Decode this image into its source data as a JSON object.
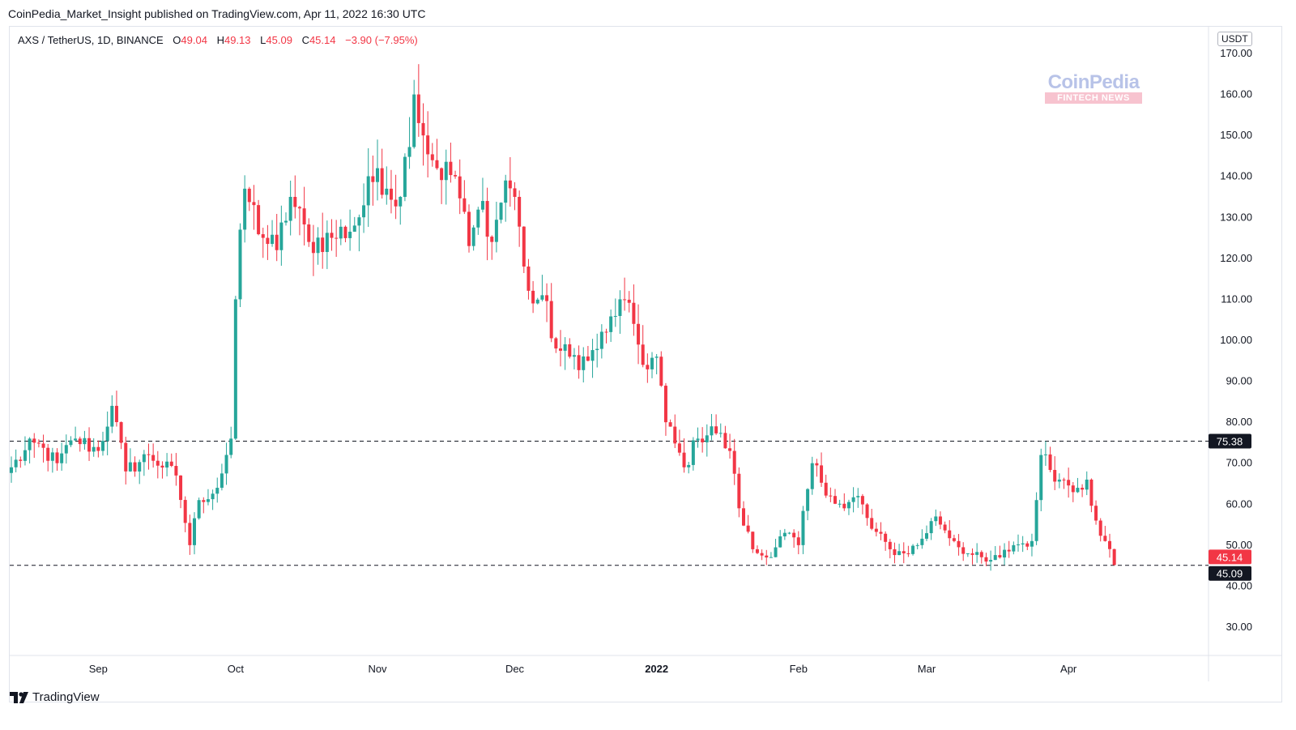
{
  "header": {
    "published": "CoinPedia_Market_Insight published on TradingView.com, Apr 11, 2022 16:30 UTC"
  },
  "legend": {
    "symbol": "AXS / TetherUS, 1D, BINANCE",
    "open_label": "O",
    "open": "49.04",
    "high_label": "H",
    "high": "49.13",
    "low_label": "L",
    "low": "45.09",
    "close_label": "C",
    "close": "45.14",
    "change": "−3.90 (−7.95%)"
  },
  "watermark": {
    "main": "CoinPedia",
    "sub": "FINTECH NEWS"
  },
  "footer": {
    "brand": "TradingView",
    "logo_icon": "tradingview-logo-icon"
  },
  "colors": {
    "up": "#26a69a",
    "down": "#f23645",
    "grid_border": "#e0e3eb",
    "text": "#131722"
  },
  "chart_data": {
    "type": "candlestick",
    "unit": "USDT",
    "ylim": [
      22,
      175
    ],
    "yticks": [
      "170.00",
      "160.00",
      "150.00",
      "140.00",
      "130.00",
      "120.00",
      "110.00",
      "100.00",
      "90.00",
      "80.00",
      "70.00",
      "60.00",
      "50.00",
      "40.00",
      "30.00"
    ],
    "xlabels": [
      {
        "label": "Sep",
        "date": "2021-09-01",
        "bold": false
      },
      {
        "label": "Oct",
        "date": "2021-10-01",
        "bold": false
      },
      {
        "label": "Nov",
        "date": "2021-11-01",
        "bold": false
      },
      {
        "label": "Dec",
        "date": "2021-12-01",
        "bold": false
      },
      {
        "label": "2022",
        "date": "2022-01-01",
        "bold": true
      },
      {
        "label": "Feb",
        "date": "2022-02-01",
        "bold": false
      },
      {
        "label": "Mar",
        "date": "2022-03-01",
        "bold": false
      },
      {
        "label": "Apr",
        "date": "2022-04-01",
        "bold": false
      }
    ],
    "hlines": [
      {
        "value": 75.38,
        "label": "75.38",
        "style": "dashed"
      },
      {
        "value": 45.09,
        "label": "45.09",
        "style": "dashed"
      }
    ],
    "price_tags": [
      {
        "value": 45.14,
        "label": "45.14",
        "bg": "#f23645"
      },
      {
        "value": 45.09,
        "label": "45.09",
        "bg": "#131722"
      }
    ],
    "series": [
      {
        "name": "AXS / TetherUS",
        "start_date": "2021-08-13",
        "waypoints": [
          {
            "date": "2021-08-13",
            "close": 69
          },
          {
            "date": "2021-08-18",
            "close": 75
          },
          {
            "date": "2021-08-23",
            "close": 70
          },
          {
            "date": "2021-08-27",
            "close": 76
          },
          {
            "date": "2021-09-01",
            "close": 73
          },
          {
            "date": "2021-09-04",
            "close": 84
          },
          {
            "date": "2021-09-07",
            "close": 68
          },
          {
            "date": "2021-09-12",
            "close": 72
          },
          {
            "date": "2021-09-18",
            "close": 67
          },
          {
            "date": "2021-09-21",
            "close": 50
          },
          {
            "date": "2021-09-23",
            "close": 61
          },
          {
            "date": "2021-09-27",
            "close": 64
          },
          {
            "date": "2021-09-30",
            "close": 76
          },
          {
            "date": "2021-10-01",
            "close": 110
          },
          {
            "date": "2021-10-03",
            "close": 137
          },
          {
            "date": "2021-10-07",
            "close": 125
          },
          {
            "date": "2021-10-10",
            "close": 122
          },
          {
            "date": "2021-10-13",
            "close": 135
          },
          {
            "date": "2021-10-17",
            "close": 124
          },
          {
            "date": "2021-10-22",
            "close": 125
          },
          {
            "date": "2021-10-27",
            "close": 128
          },
          {
            "date": "2021-11-01",
            "close": 142
          },
          {
            "date": "2021-11-03",
            "close": 137
          },
          {
            "date": "2021-11-06",
            "close": 135
          },
          {
            "date": "2021-11-09",
            "close": 160
          },
          {
            "date": "2021-11-11",
            "close": 150
          },
          {
            "date": "2021-11-14",
            "close": 142
          },
          {
            "date": "2021-11-18",
            "close": 140
          },
          {
            "date": "2021-11-21",
            "close": 123
          },
          {
            "date": "2021-11-24",
            "close": 134
          },
          {
            "date": "2021-11-26",
            "close": 124
          },
          {
            "date": "2021-11-29",
            "close": 139
          },
          {
            "date": "2021-12-01",
            "close": 135
          },
          {
            "date": "2021-12-03",
            "close": 118
          },
          {
            "date": "2021-12-05",
            "close": 109
          },
          {
            "date": "2021-12-07",
            "close": 111
          },
          {
            "date": "2021-12-10",
            "close": 98
          },
          {
            "date": "2021-12-13",
            "close": 96
          },
          {
            "date": "2021-12-17",
            "close": 95
          },
          {
            "date": "2021-12-21",
            "close": 102
          },
          {
            "date": "2021-12-24",
            "close": 110
          },
          {
            "date": "2021-12-27",
            "close": 104
          },
          {
            "date": "2021-12-29",
            "close": 94
          },
          {
            "date": "2022-01-01",
            "close": 96
          },
          {
            "date": "2022-01-03",
            "close": 80
          },
          {
            "date": "2022-01-07",
            "close": 69
          },
          {
            "date": "2022-01-10",
            "close": 76
          },
          {
            "date": "2022-01-13",
            "close": 79
          },
          {
            "date": "2022-01-17",
            "close": 73
          },
          {
            "date": "2022-01-19",
            "close": 59
          },
          {
            "date": "2022-01-22",
            "close": 49
          },
          {
            "date": "2022-01-25",
            "close": 47
          },
          {
            "date": "2022-01-29",
            "close": 53
          },
          {
            "date": "2022-02-01",
            "close": 50
          },
          {
            "date": "2022-02-04",
            "close": 70
          },
          {
            "date": "2022-02-08",
            "close": 62
          },
          {
            "date": "2022-02-11",
            "close": 59
          },
          {
            "date": "2022-02-14",
            "close": 62
          },
          {
            "date": "2022-02-17",
            "close": 54
          },
          {
            "date": "2022-02-21",
            "close": 49
          },
          {
            "date": "2022-02-24",
            "close": 48
          },
          {
            "date": "2022-02-27",
            "close": 50
          },
          {
            "date": "2022-03-03",
            "close": 57
          },
          {
            "date": "2022-03-07",
            "close": 51
          },
          {
            "date": "2022-03-10",
            "close": 48
          },
          {
            "date": "2022-03-14",
            "close": 46
          },
          {
            "date": "2022-03-17",
            "close": 47
          },
          {
            "date": "2022-03-20",
            "close": 50
          },
          {
            "date": "2022-03-24",
            "close": 51
          },
          {
            "date": "2022-03-25",
            "close": 61
          },
          {
            "date": "2022-03-26",
            "close": 72
          },
          {
            "date": "2022-03-30",
            "close": 66
          },
          {
            "date": "2022-04-03",
            "close": 64
          },
          {
            "date": "2022-04-05",
            "close": 66
          },
          {
            "date": "2022-04-07",
            "close": 56
          },
          {
            "date": "2022-04-09",
            "close": 51
          },
          {
            "date": "2022-04-10",
            "close": 49.04
          },
          {
            "date": "2022-04-11",
            "close": 45.14
          }
        ]
      }
    ]
  }
}
